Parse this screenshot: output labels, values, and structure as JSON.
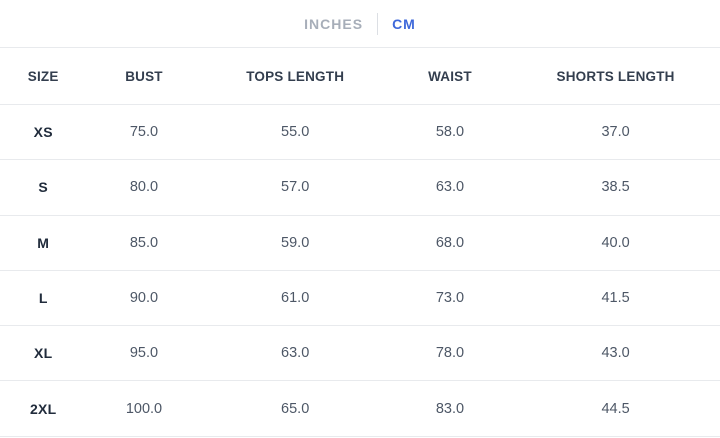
{
  "unit_toggle": {
    "options": [
      {
        "label": "INCHES",
        "active": false
      },
      {
        "label": "CM",
        "active": true
      }
    ]
  },
  "table": {
    "columns": [
      "SIZE",
      "BUST",
      "TOPS LENGTH",
      "WAIST",
      "SHORTS LENGTH"
    ],
    "rows": [
      {
        "size": "XS",
        "values": [
          "75.0",
          "55.0",
          "58.0",
          "37.0"
        ]
      },
      {
        "size": "S",
        "values": [
          "80.0",
          "57.0",
          "63.0",
          "38.5"
        ]
      },
      {
        "size": "M",
        "values": [
          "85.0",
          "59.0",
          "68.0",
          "40.0"
        ]
      },
      {
        "size": "L",
        "values": [
          "90.0",
          "61.0",
          "73.0",
          "41.5"
        ]
      },
      {
        "size": "XL",
        "values": [
          "95.0",
          "63.0",
          "78.0",
          "43.0"
        ]
      },
      {
        "size": "2XL",
        "values": [
          "100.0",
          "65.0",
          "83.0",
          "44.5"
        ]
      }
    ]
  },
  "colors": {
    "active_unit": "#3e68da",
    "inactive_unit": "#a7aeb9",
    "header_text": "#333e4e",
    "size_text": "#212c3c",
    "value_text": "#4d5766",
    "divider": "#e8eaed"
  }
}
